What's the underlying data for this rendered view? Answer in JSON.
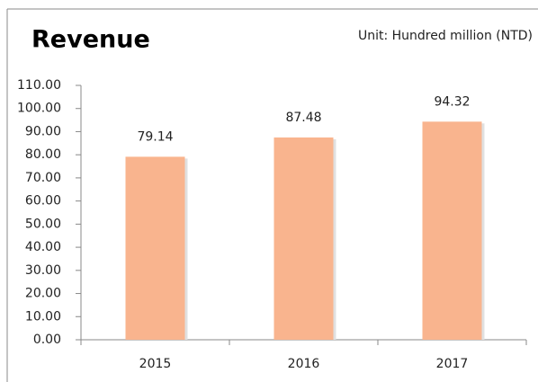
{
  "chart_data": {
    "type": "bar",
    "title": "Revenue",
    "subtitle": "Unit: Hundred million (NTD)",
    "categories": [
      "2015",
      "2016",
      "2017"
    ],
    "values": [
      79.14,
      87.48,
      94.32
    ],
    "color": "#f9b48e",
    "ylim": [
      0,
      110
    ],
    "yticks": [
      {
        "value": 0,
        "label": "0.00"
      },
      {
        "value": 10,
        "label": "10.00"
      },
      {
        "value": 20,
        "label": "20.00"
      },
      {
        "value": 30,
        "label": "30.00"
      },
      {
        "value": 40,
        "label": "40.00"
      },
      {
        "value": 50,
        "label": "50.00"
      },
      {
        "value": 60,
        "label": "60.00"
      },
      {
        "value": 70,
        "label": "70.00"
      },
      {
        "value": 80,
        "label": "80.00"
      },
      {
        "value": 90,
        "label": "90.00"
      },
      {
        "value": 100,
        "label": "100.00"
      },
      {
        "value": 110,
        "label": "110.00"
      }
    ],
    "grid": false
  }
}
